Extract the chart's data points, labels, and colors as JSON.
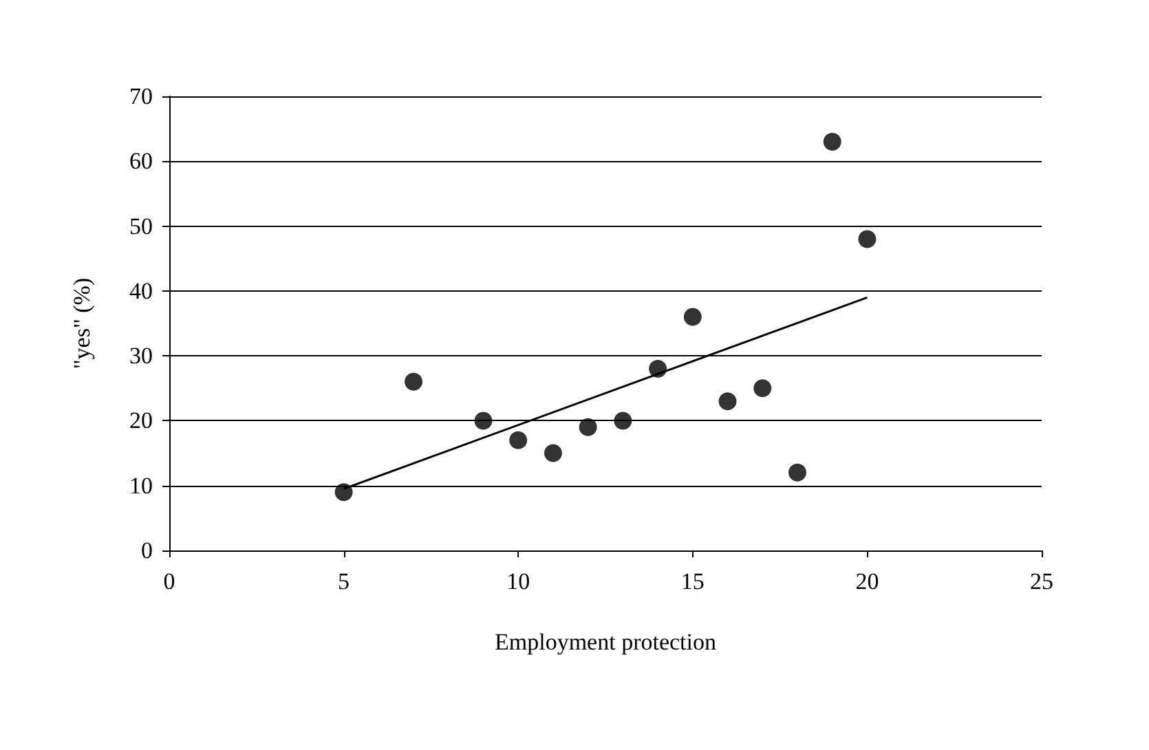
{
  "chart_data": {
    "type": "scatter",
    "xlabel": "Employment protection",
    "ylabel": "\"yes\" (%)",
    "series": [
      {
        "color": "#000000",
        "x": [
          5,
          7,
          9,
          10,
          11,
          12,
          13,
          14,
          15,
          16,
          17,
          18,
          19,
          20
        ],
        "values": [
          9,
          26,
          20,
          17,
          15,
          19,
          20,
          28,
          36,
          23,
          25,
          12,
          63,
          48
        ]
      },
      {
        "type": "line",
        "color": "#000000",
        "x": [
          5,
          20
        ],
        "values": [
          9.5,
          39
        ],
        "marker": "none"
      }
    ],
    "xlim": [
      0,
      25
    ],
    "xticks": [
      0,
      5,
      10,
      15,
      20,
      25
    ],
    "ylim": [
      0,
      70
    ],
    "yticks": [
      0,
      10,
      20,
      30,
      40,
      50,
      60,
      70
    ],
    "grid": "y",
    "marker": "circle",
    "line_style": "solid"
  }
}
